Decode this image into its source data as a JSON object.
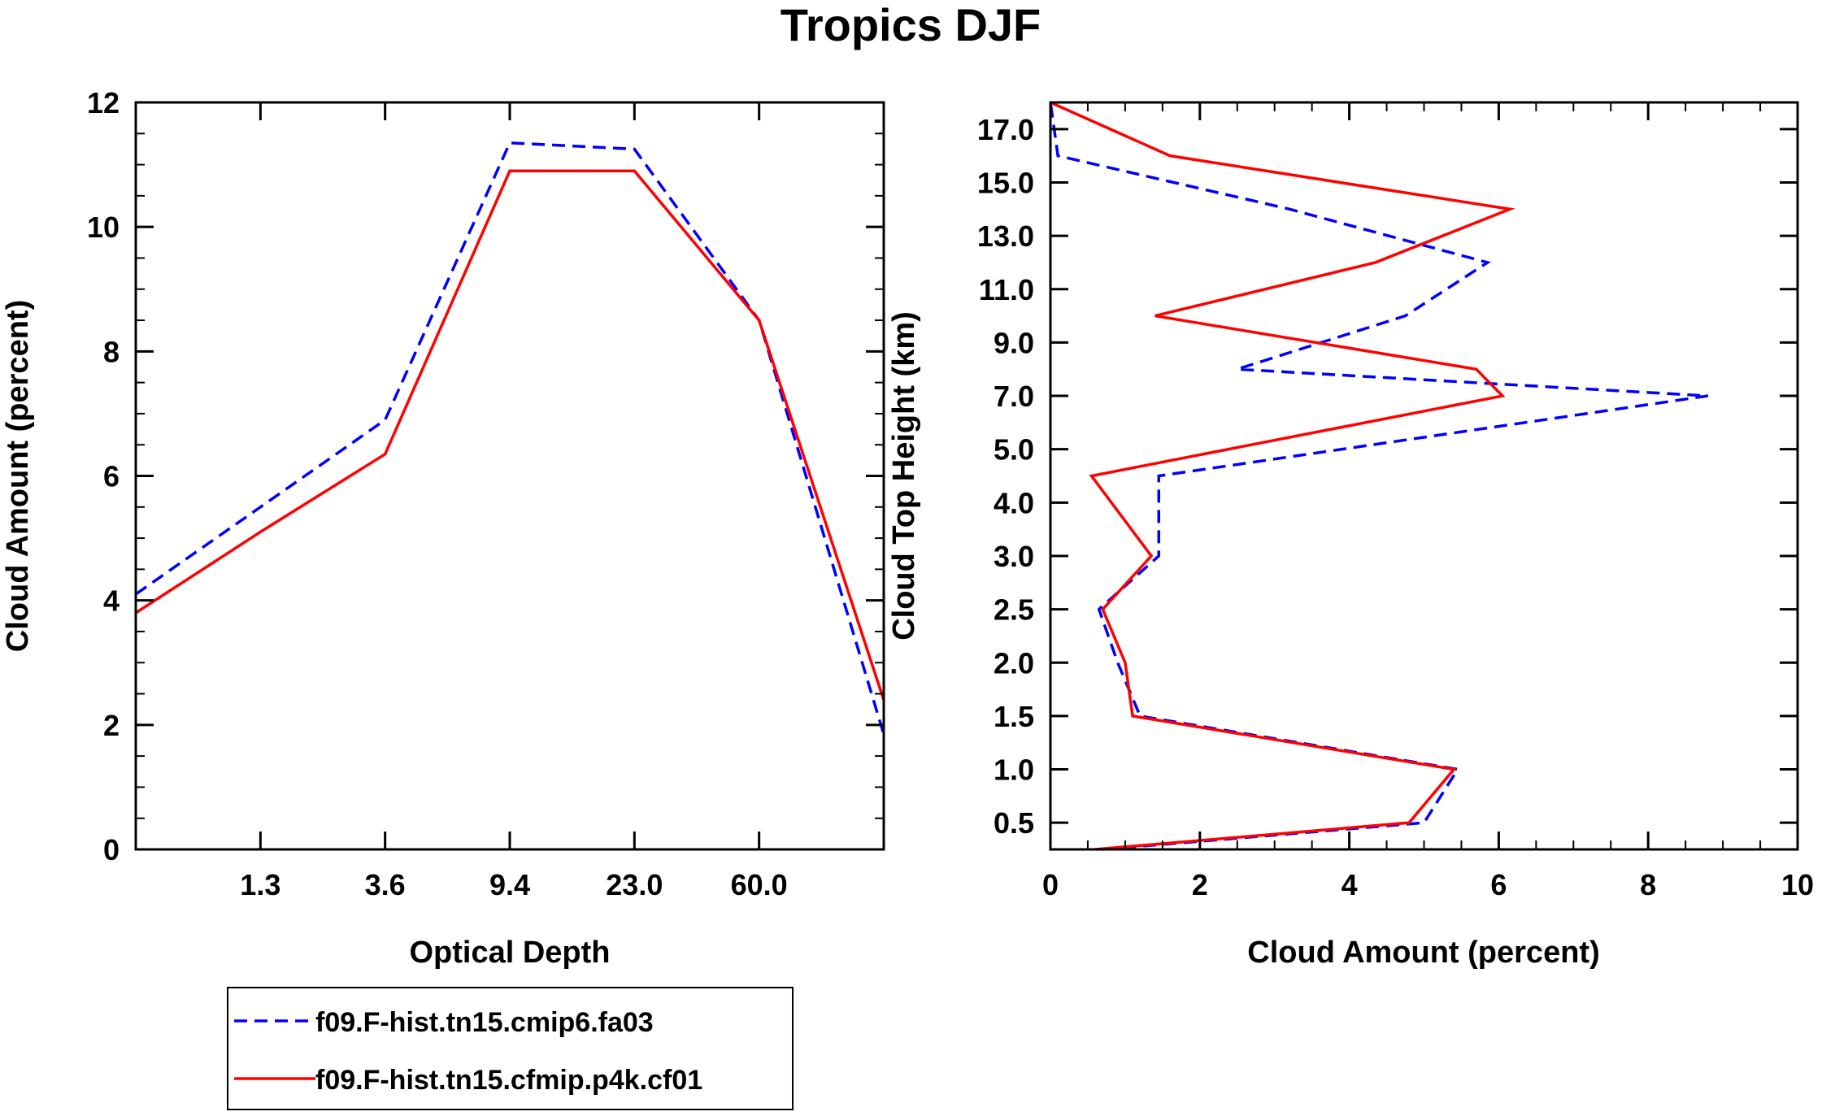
{
  "figure_title": "Tropics DJF",
  "colors": {
    "blue": "#0000FF",
    "red": "#FF0000",
    "axis": "#000000"
  },
  "chart_data": [
    {
      "type": "line",
      "title": "Tropics DJF",
      "xlabel": "Optical Depth",
      "ylabel": "Cloud Amount (percent)",
      "x": [
        1,
        2,
        3,
        4,
        5,
        6,
        7
      ],
      "x_tick_labels": [
        "1.3",
        "3.6",
        "9.4",
        "23.0",
        "60.0"
      ],
      "x_tick_positions": [
        1.5,
        2.5,
        3.5,
        4.5,
        5.5
      ],
      "xlim": [
        0.5,
        6.5
      ],
      "ylim": [
        0,
        12
      ],
      "y_ticks": [
        0,
        2,
        4,
        6,
        8,
        10,
        12
      ],
      "y_tick_labels": [
        "0",
        "2",
        "4",
        "6",
        "8",
        "10",
        "12"
      ],
      "series": [
        {
          "name": "f09.F-hist.tn15.cmip6.fa03",
          "color": "#0000FF",
          "dash": "dashed",
          "x": [
            0.5,
            1.5,
            2.5,
            3.5,
            4.5,
            5.5,
            6.5
          ],
          "values": [
            4.1,
            5.5,
            6.9,
            11.35,
            11.25,
            8.5,
            1.85
          ]
        },
        {
          "name": "f09.F-hist.tn15.cfmip.p4k.cf01",
          "color": "#FF0000",
          "dash": "solid",
          "x": [
            0.5,
            1.5,
            2.5,
            3.5,
            4.5,
            5.5,
            6.5
          ],
          "values": [
            3.8,
            5.1,
            6.35,
            10.9,
            10.9,
            8.5,
            2.4
          ]
        }
      ]
    },
    {
      "type": "line",
      "xlabel": "Cloud Amount (percent)",
      "ylabel": "Cloud Top Height (km)",
      "xlim": [
        0,
        10
      ],
      "x_ticks": [
        0,
        2,
        4,
        6,
        8,
        10
      ],
      "x_tick_labels": [
        "0",
        "2",
        "4",
        "6",
        "8",
        "10"
      ],
      "ylim": [
        0,
        14
      ],
      "y_tick_positions": [
        0.5,
        1.5,
        2.5,
        3.5,
        4.5,
        5.5,
        6.5,
        7.5,
        8.5,
        9.5,
        10.5,
        11.5,
        12.5,
        13.5
      ],
      "y_tick_labels": [
        "0.5",
        "1.0",
        "1.5",
        "2.0",
        "2.5",
        "3.0",
        "4.0",
        "5.0",
        "7.0",
        "9.0",
        "11.0",
        "13.0",
        "15.0",
        "17.0"
      ],
      "series": [
        {
          "name": "f09.F-hist.tn15.cmip6.fa03",
          "color": "#0000FF",
          "dash": "dashed",
          "amount": [
            0.7,
            5.0,
            5.45,
            1.2,
            0.9,
            0.65,
            1.45,
            1.45,
            8.8,
            2.5,
            4.75,
            5.85,
            3.2,
            0.1,
            0.0
          ],
          "height": [
            0.0,
            0.5,
            1.5,
            2.5,
            3.5,
            4.5,
            5.5,
            7.0,
            8.5,
            9.0,
            10.0,
            11.0,
            12.0,
            13.0,
            14.0
          ]
        },
        {
          "name": "f09.F-hist.tn15.cfmip.p4k.cf01",
          "color": "#FF0000",
          "dash": "solid",
          "amount": [
            0.6,
            4.8,
            5.4,
            1.1,
            1.0,
            0.7,
            1.35,
            0.55,
            6.05,
            5.7,
            1.4,
            4.35,
            6.15,
            1.6,
            0.0
          ],
          "height": [
            0.0,
            0.5,
            1.5,
            2.5,
            3.5,
            4.5,
            5.5,
            7.0,
            8.5,
            9.0,
            10.0,
            11.0,
            12.0,
            13.0,
            14.0
          ]
        }
      ]
    }
  ],
  "legend": [
    {
      "label": "f09.F-hist.tn15.cmip6.fa03",
      "color": "#0000FF",
      "dash": "dashed"
    },
    {
      "label": "f09.F-hist.tn15.cfmip.p4k.cf01",
      "color": "#FF0000",
      "dash": "solid"
    }
  ]
}
